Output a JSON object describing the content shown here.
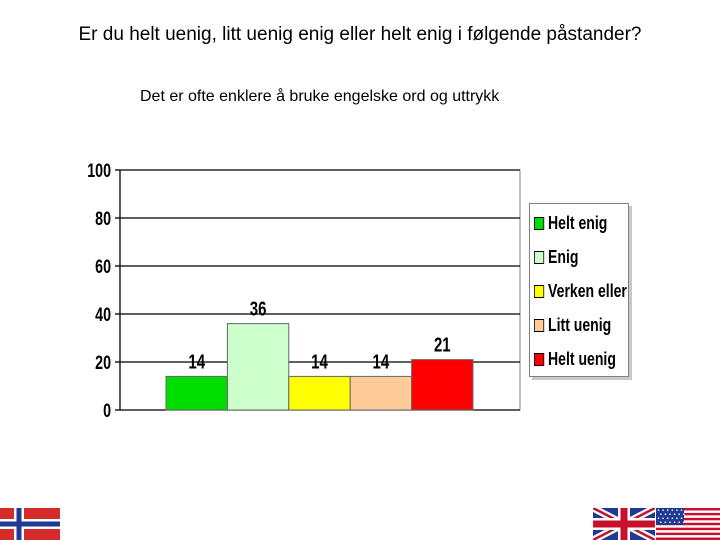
{
  "header": {
    "title": "Er du helt uenig, litt uenig enig eller helt enig i følgende påstander?",
    "subtitle": "Det er ofte enklere å bruke engelske ord og uttrykk"
  },
  "chart_data": {
    "type": "bar",
    "categories": [
      "Helt enig",
      "Enig",
      "Verken eller",
      "Litt uenig",
      "Helt uenig"
    ],
    "values": [
      14,
      36,
      14,
      14,
      21
    ],
    "colors": [
      "#00dd00",
      "#ccffcc",
      "#ffff00",
      "#ffcc99",
      "#ff0000"
    ],
    "yticks": [
      0,
      20,
      40,
      60,
      80,
      100
    ],
    "ylim": [
      0,
      100
    ],
    "grid": true,
    "legend": "right",
    "title": "",
    "xlabel": "",
    "ylabel": ""
  },
  "legend": {
    "items": [
      {
        "label": "Helt enig",
        "color": "#00dd00"
      },
      {
        "label": "Enig",
        "color": "#ccffcc"
      },
      {
        "label": "Verken eller",
        "color": "#ffff00"
      },
      {
        "label": "Litt uenig",
        "color": "#ffcc99"
      },
      {
        "label": "Helt uenig",
        "color": "#ff0000"
      }
    ]
  },
  "flags": {
    "left": "norway-flag-icon",
    "right": [
      "uk-flag-icon",
      "usa-flag-icon"
    ]
  }
}
